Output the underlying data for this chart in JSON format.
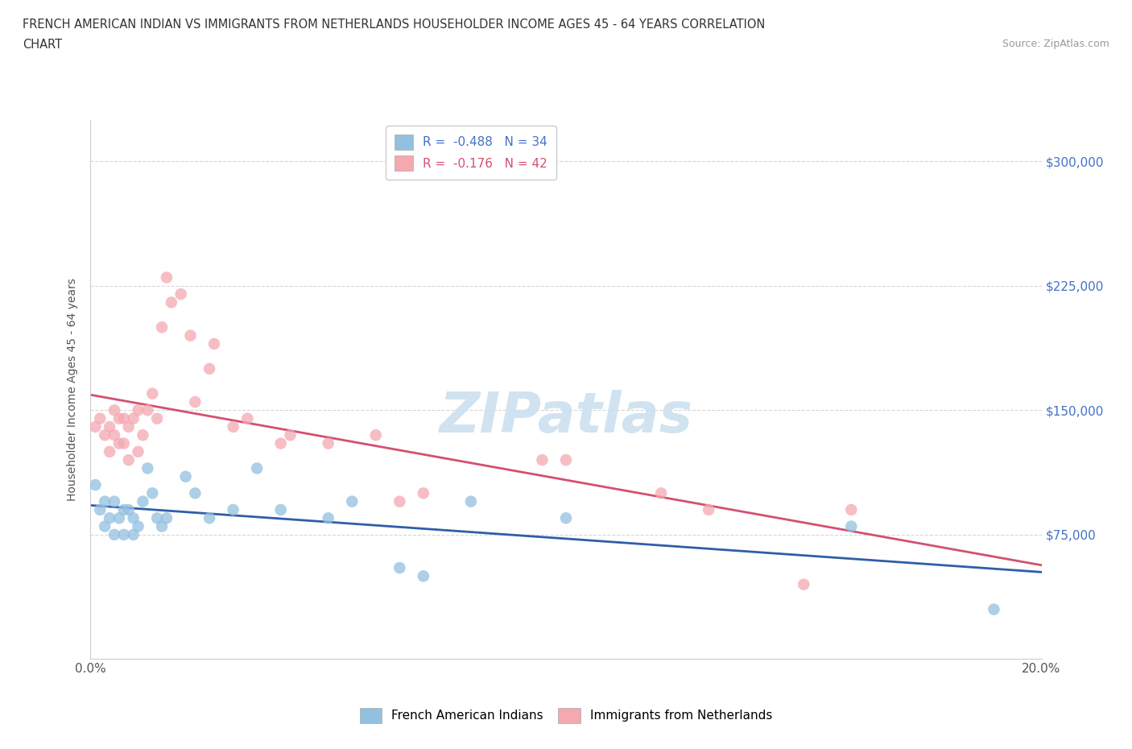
{
  "title_line1": "FRENCH AMERICAN INDIAN VS IMMIGRANTS FROM NETHERLANDS HOUSEHOLDER INCOME AGES 45 - 64 YEARS CORRELATION",
  "title_line2": "CHART",
  "source": "Source: ZipAtlas.com",
  "ylabel": "Householder Income Ages 45 - 64 years",
  "xlim": [
    0.0,
    0.2
  ],
  "ylim": [
    0,
    325000
  ],
  "yticks": [
    0,
    75000,
    150000,
    225000,
    300000
  ],
  "ytick_labels": [
    "",
    "$75,000",
    "$150,000",
    "$225,000",
    "$300,000"
  ],
  "blue_R": -0.488,
  "blue_N": 34,
  "pink_R": -0.176,
  "pink_N": 42,
  "blue_color": "#92c0e0",
  "pink_color": "#f4a8b0",
  "blue_line_color": "#2f5ea8",
  "pink_line_color": "#d45070",
  "watermark_color": "#cce0f0",
  "blue_scatter_x": [
    0.001,
    0.002,
    0.003,
    0.003,
    0.004,
    0.005,
    0.005,
    0.006,
    0.007,
    0.007,
    0.008,
    0.009,
    0.009,
    0.01,
    0.011,
    0.012,
    0.013,
    0.014,
    0.015,
    0.016,
    0.02,
    0.022,
    0.025,
    0.03,
    0.035,
    0.04,
    0.05,
    0.055,
    0.065,
    0.07,
    0.08,
    0.1,
    0.16,
    0.19
  ],
  "blue_scatter_y": [
    105000,
    90000,
    95000,
    80000,
    85000,
    95000,
    75000,
    85000,
    90000,
    75000,
    90000,
    85000,
    75000,
    80000,
    95000,
    115000,
    100000,
    85000,
    80000,
    85000,
    110000,
    100000,
    85000,
    90000,
    115000,
    90000,
    85000,
    95000,
    55000,
    50000,
    95000,
    85000,
    80000,
    30000
  ],
  "pink_scatter_x": [
    0.001,
    0.002,
    0.003,
    0.004,
    0.004,
    0.005,
    0.005,
    0.006,
    0.006,
    0.007,
    0.007,
    0.008,
    0.008,
    0.009,
    0.01,
    0.01,
    0.011,
    0.012,
    0.013,
    0.014,
    0.015,
    0.016,
    0.017,
    0.019,
    0.021,
    0.022,
    0.025,
    0.026,
    0.03,
    0.033,
    0.04,
    0.042,
    0.05,
    0.06,
    0.065,
    0.07,
    0.095,
    0.1,
    0.12,
    0.13,
    0.15,
    0.16
  ],
  "pink_scatter_y": [
    140000,
    145000,
    135000,
    140000,
    125000,
    135000,
    150000,
    130000,
    145000,
    145000,
    130000,
    140000,
    120000,
    145000,
    150000,
    125000,
    135000,
    150000,
    160000,
    145000,
    200000,
    230000,
    215000,
    220000,
    195000,
    155000,
    175000,
    190000,
    140000,
    145000,
    130000,
    135000,
    130000,
    135000,
    95000,
    100000,
    120000,
    120000,
    100000,
    90000,
    45000,
    90000
  ]
}
